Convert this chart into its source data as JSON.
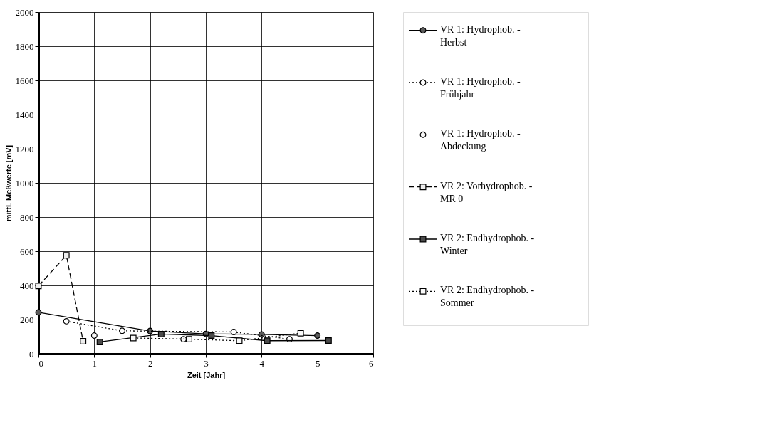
{
  "chart_data": {
    "type": "line",
    "xlabel": "Zeit [Jahr]",
    "ylabel": "mittl. Meßwerte [mV]",
    "xlim": [
      0,
      6
    ],
    "xticks": [
      0,
      1,
      2,
      3,
      4,
      5,
      6
    ],
    "ylim": [
      0,
      2000
    ],
    "yticks": [
      0,
      200,
      400,
      600,
      800,
      1000,
      1200,
      1400,
      1600,
      1800,
      2000
    ],
    "grid": true,
    "legend": "right",
    "series": [
      {
        "name": "VR 1: Hydrophob. - Herbst",
        "color": "#5a5a5a",
        "marker": "circle",
        "line_style": "solid",
        "x": [
          0,
          2.0,
          3.0,
          4.0,
          5.0
        ],
        "values": [
          242,
          133,
          116,
          113,
          106
        ]
      },
      {
        "name": "VR 1: Hydrophob. - Frühjahr",
        "color": "#ffffff",
        "marker": "circle",
        "line_style": "dotted",
        "x": [
          0.5,
          1.5,
          3.5,
          4.5
        ],
        "values": [
          190,
          134,
          127,
          85
        ]
      },
      {
        "name": "VR 1: Hydrophob. - Abdeckung",
        "type": "scatter",
        "color": "#f6f6f6",
        "marker": "circle",
        "x": [
          1.0,
          2.6
        ],
        "values": [
          106,
          85
        ]
      },
      {
        "name": "VR 2: Vorhydrophob. - MR 0",
        "color": "#eeeeee",
        "marker": "square",
        "line_style": "dashed",
        "x": [
          0,
          0.5,
          0.8
        ],
        "values": [
          397,
          576,
          73
        ]
      },
      {
        "name": "VR 2: Endhydrophob. - Winter",
        "color": "#4a4a4a",
        "marker": "square",
        "line_style": "solid",
        "x": [
          1.1,
          2.2,
          3.1,
          4.1,
          5.2
        ],
        "values": [
          69,
          115,
          106,
          76,
          77
        ]
      },
      {
        "name": "VR 2: Endhydrophob. - Sommer",
        "color": "#fafafa",
        "marker": "square",
        "line_style": "dotted",
        "x": [
          1.7,
          2.7,
          3.6,
          4.7
        ],
        "values": [
          92,
          85,
          76,
          120
        ]
      }
    ]
  }
}
